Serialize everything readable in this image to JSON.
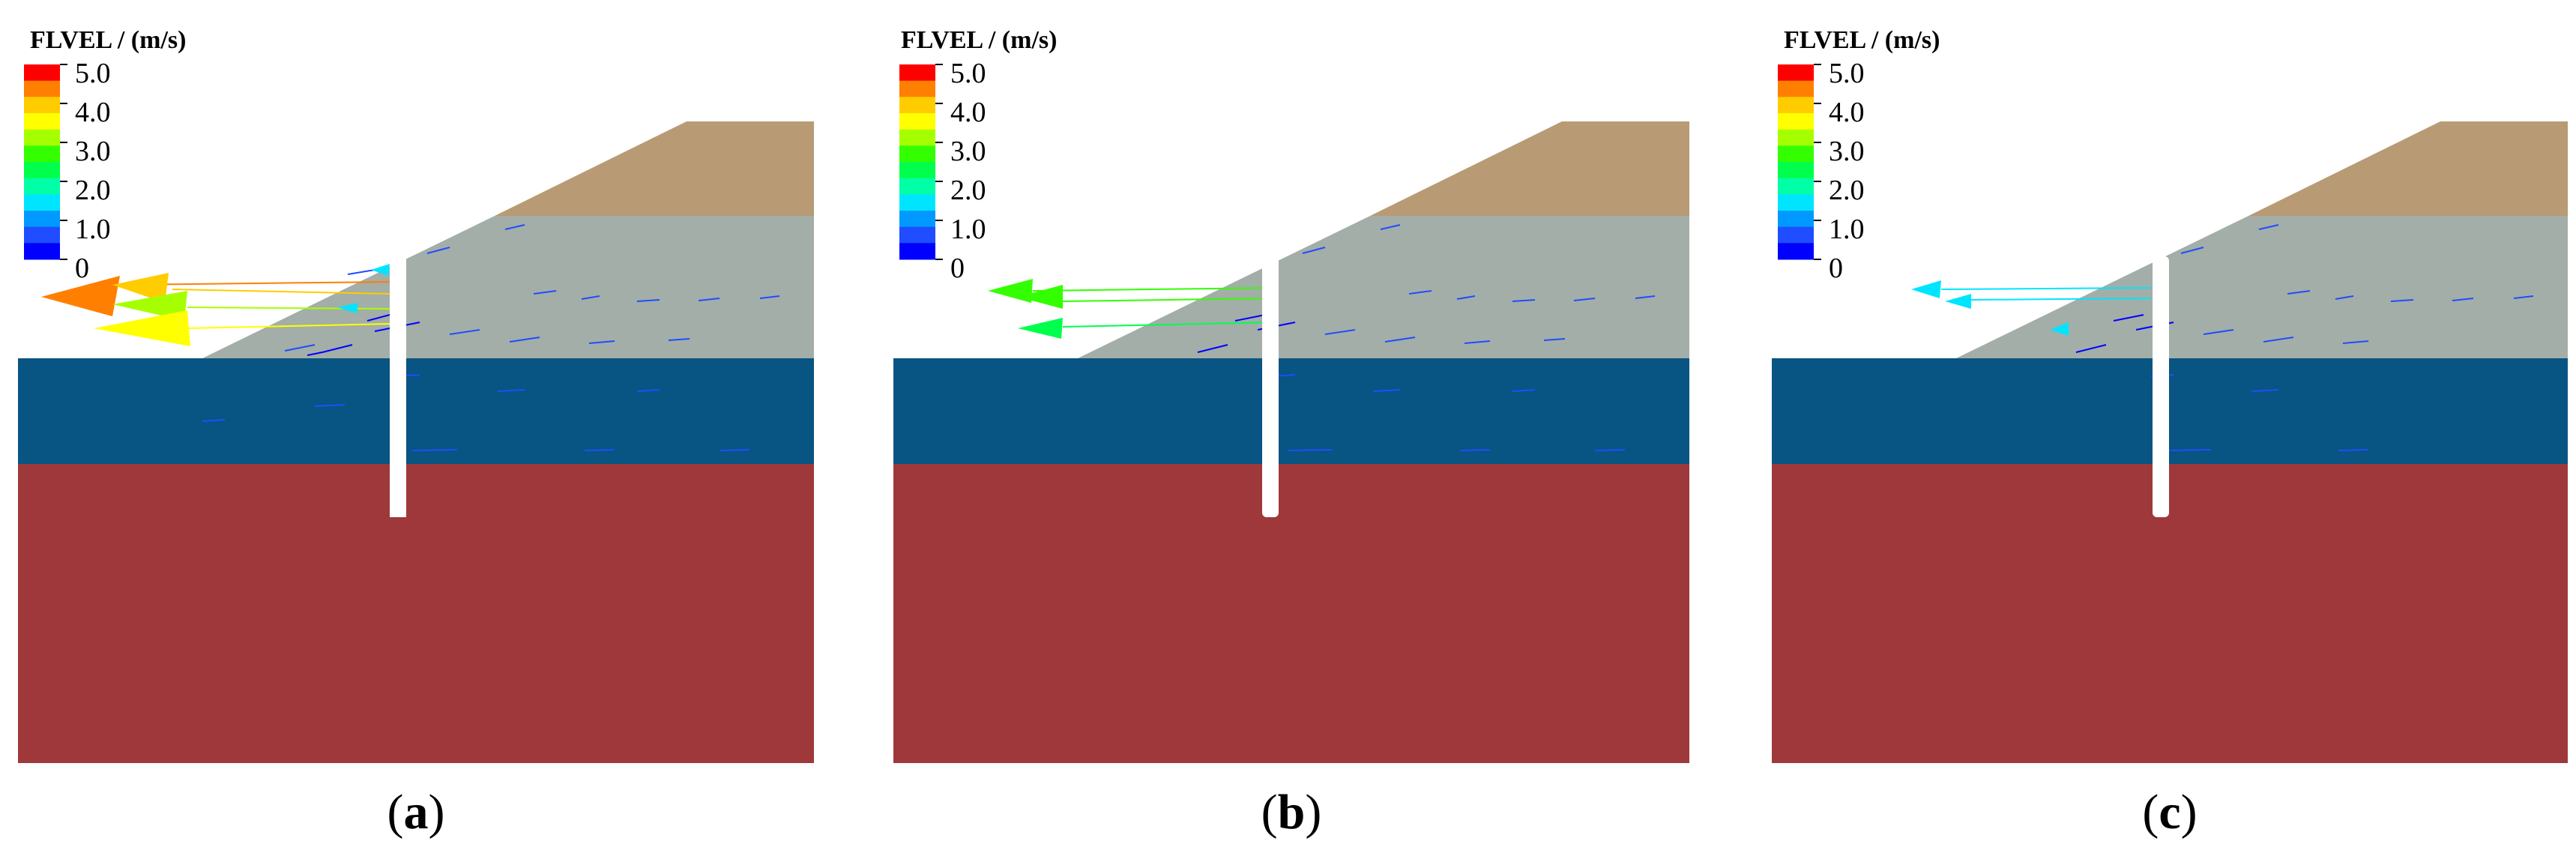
{
  "legend": {
    "title": "FLVEL / (m/s)",
    "tick_labels": [
      "5.0",
      "4.0",
      "3.0",
      "2.0",
      "1.0",
      "0"
    ],
    "band_colors": [
      "#ff0000",
      "#ff7f00",
      "#ffcc00",
      "#ffff00",
      "#a6ff00",
      "#33ff00",
      "#00ff4d",
      "#00ffa6",
      "#00e5ff",
      "#0099ff",
      "#1f4dff",
      "#0000ff"
    ]
  },
  "layer_colors": {
    "top_soil": "#b89b74",
    "gray_soil": "#a3aea8",
    "blue_layer": "#085482",
    "bedrock": "#9e383a",
    "pile": "#ffffff"
  },
  "panels": [
    {
      "letter": "a",
      "caption_open": "(",
      "caption_close": ")",
      "max_arrow_color": "#ff7f00"
    },
    {
      "letter": "b",
      "caption_open": "(",
      "caption_close": ")",
      "max_arrow_color": "#33ff00"
    },
    {
      "letter": "c",
      "caption_open": "(",
      "caption_close": ")",
      "max_arrow_color": "#00e5ff"
    }
  ]
}
